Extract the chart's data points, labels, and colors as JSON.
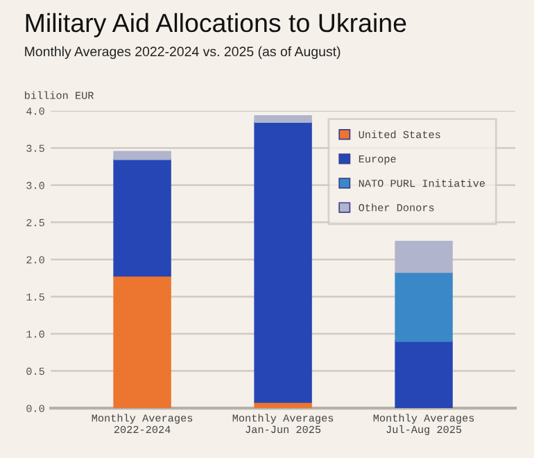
{
  "chart_data": {
    "type": "bar",
    "title": "Military Aid Allocations to Ukraine",
    "subtitle": "Monthly Averages 2022-2024 vs. 2025 (as of August)",
    "ylabel": "billion EUR",
    "categories": [
      "Monthly Averages\n2022-2024",
      "Monthly Averages\nJan-Jun 2025",
      "Monthly Averages\nJul-Aug 2025"
    ],
    "stacked": true,
    "series": [
      {
        "name": "United States",
        "color": "#ec7530",
        "values": [
          1.78,
          0.08,
          0
        ]
      },
      {
        "name": "Europe",
        "color": "#2546b4",
        "values": [
          1.57,
          3.77,
          0.9
        ]
      },
      {
        "name": "NATO PURL Initiative",
        "color": "#3a88c8",
        "values": [
          0,
          0,
          0.93
        ]
      },
      {
        "name": "Other Donors",
        "color": "#b0b4cc",
        "values": [
          0.1,
          0.08,
          0.41
        ]
      }
    ],
    "ylim": [
      0,
      4
    ],
    "yticks": [
      {
        "value": 0,
        "label": "0.0"
      },
      {
        "value": 0.5,
        "label": "0.5"
      },
      {
        "value": 1,
        "label": "1.0"
      },
      {
        "value": 1.5,
        "label": "1.5"
      },
      {
        "value": 2,
        "label": "2.0"
      },
      {
        "value": 2.5,
        "label": "2.5"
      },
      {
        "value": 3,
        "label": "3.0"
      },
      {
        "value": 3.5,
        "label": "3.5"
      },
      {
        "value": 4,
        "label": "4.0"
      }
    ],
    "grid": "y",
    "legend": "top right"
  }
}
